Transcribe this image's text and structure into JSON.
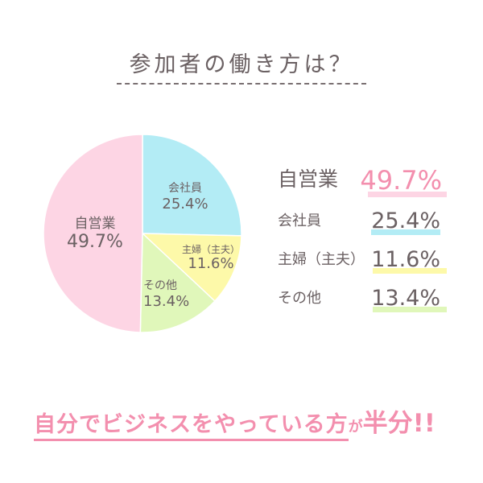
{
  "title": "参加者の働き方は？",
  "chart_data": {
    "type": "pie",
    "start": "12 o'clock, clockwise",
    "slices": [
      {
        "label": "会社員",
        "value": 25.4,
        "display": "25.4%",
        "color": "#b3ecf5"
      },
      {
        "label": "主婦（主夫）",
        "value": 11.6,
        "display": "11.6%",
        "color": "#fdf9a9"
      },
      {
        "label": "その他",
        "value": 13.4,
        "display": "13.4%",
        "color": "#e0f7ba"
      },
      {
        "label": "自営業",
        "value": 49.7,
        "display": "49.7%",
        "color": "#fdd5e4"
      }
    ]
  },
  "legend": [
    {
      "label": "自営業",
      "display": "49.7%",
      "color": "#fdd5e4",
      "text_color": "#f38fae"
    },
    {
      "label": "会社員",
      "display": "25.4%",
      "color": "#b3ecf5",
      "text_color": "#6b6163"
    },
    {
      "label": "主婦（主夫）",
      "display": "11.6%",
      "color": "#fdf9a9",
      "text_color": "#6b6163"
    },
    {
      "label": "その他",
      "display": "13.4%",
      "color": "#e0f7ba",
      "text_color": "#6b6163"
    }
  ],
  "conclusion": {
    "part1": "自分でビジネスをやっている方",
    "part2": "が",
    "part3": "半分!!"
  }
}
